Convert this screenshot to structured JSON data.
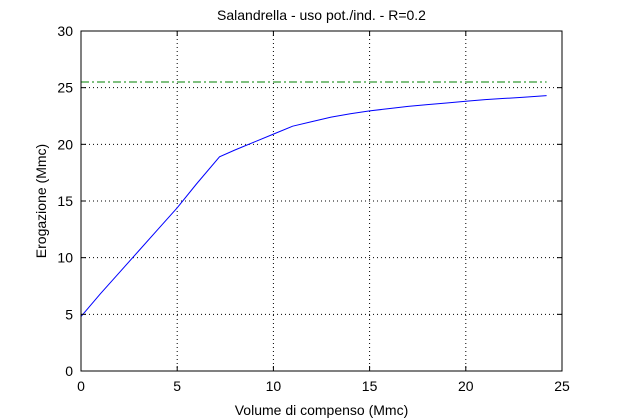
{
  "chart_data": {
    "type": "line",
    "title": "Salandrella  -  uso pot./ind.  -   R=0.2",
    "xlabel": "Volume di compenso (Mmc)",
    "ylabel": "Erogazione (Mmc)",
    "xlim": [
      0,
      25
    ],
    "ylim": [
      0,
      30
    ],
    "xticks": [
      0,
      5,
      10,
      15,
      20,
      25
    ],
    "yticks": [
      0,
      5,
      10,
      15,
      20,
      25,
      30
    ],
    "xtick_labels": [
      "0",
      "5",
      "10",
      "15",
      "20",
      "25"
    ],
    "ytick_labels": [
      "0",
      "5",
      "10",
      "15",
      "20",
      "25",
      "30"
    ],
    "grid": true,
    "grid_style": "dotted",
    "series": [
      {
        "color": "#0000ff",
        "style": "solid",
        "x": [
          0,
          1,
          2,
          3,
          4,
          5,
          6,
          7.2,
          8,
          9,
          10,
          11,
          12,
          13,
          14,
          15,
          16,
          17,
          18,
          19,
          20,
          21,
          22,
          23,
          24.2
        ],
        "y": [
          4.8,
          6.8,
          8.7,
          10.6,
          12.5,
          14.4,
          16.5,
          18.9,
          19.5,
          20.2,
          20.9,
          21.6,
          22.0,
          22.4,
          22.7,
          22.95,
          23.15,
          23.35,
          23.5,
          23.65,
          23.8,
          23.95,
          24.05,
          24.15,
          24.3
        ]
      },
      {
        "color": "#008000",
        "style": "dashdot",
        "x": [
          0,
          24.2
        ],
        "y": [
          25.5,
          25.5
        ]
      }
    ]
  }
}
